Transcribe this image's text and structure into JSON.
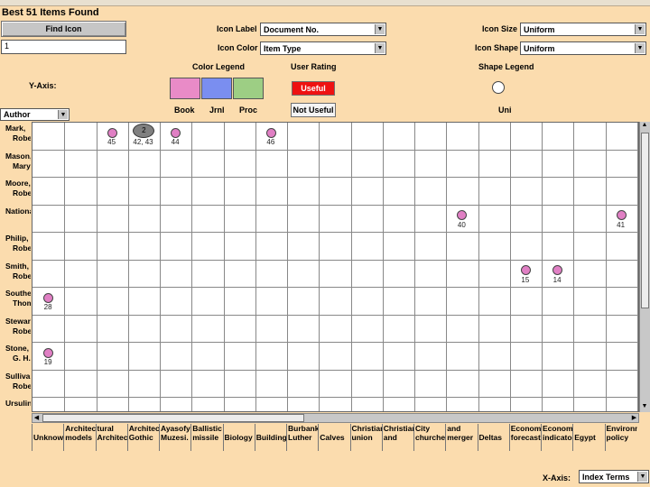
{
  "title": "Best 51 Items Found",
  "find_icon": {
    "label": "Find Icon",
    "input_value": "1"
  },
  "icon_label": {
    "label": "Icon Label",
    "value": "Document No."
  },
  "icon_color": {
    "label": "Icon Color",
    "value": "Item Type"
  },
  "icon_size": {
    "label": "Icon Size",
    "value": "Uniform"
  },
  "icon_shape": {
    "label": "Icon Shape",
    "value": "Uniform"
  },
  "color_legend": {
    "title": "Color Legend",
    "items": [
      {
        "label": "Book",
        "color": "#e98bc7"
      },
      {
        "label": "Jrnl",
        "color": "#7a8ef0"
      },
      {
        "label": "Proc",
        "color": "#9dce84"
      }
    ]
  },
  "user_rating": {
    "title": "User Rating",
    "useful": "Useful",
    "not_useful": "Not Useful"
  },
  "shape_legend": {
    "title": "Shape Legend",
    "item": "Uni"
  },
  "y_axis": {
    "label": "Y-Axis:",
    "value": "Author"
  },
  "x_axis": {
    "label": "X-Axis:",
    "value": "Index Terms"
  },
  "rows": [
    [
      "Mark,",
      "Robe"
    ],
    [
      "Mason,",
      "Mary"
    ],
    [
      "Moore,",
      "Robe"
    ],
    [
      "Nationa",
      ""
    ],
    [
      "Philip,",
      "Robe"
    ],
    [
      "Smith,",
      "Robe"
    ],
    [
      "Southe",
      "Thom"
    ],
    [
      "Stewar",
      "Robe"
    ],
    [
      "Stone,",
      "G. H."
    ],
    [
      "Sullivan",
      "Robe"
    ],
    [
      "Ursulin",
      ""
    ]
  ],
  "columns": [
    [
      "Unknown",
      ""
    ],
    [
      "Architectural",
      "models"
    ],
    [
      "tural",
      "Architecture"
    ],
    [
      "Architecture,",
      "Gothic"
    ],
    [
      "Ayasofya",
      "Muzesi."
    ],
    [
      "Ballistic",
      "missile"
    ],
    [
      "Biology",
      ""
    ],
    [
      "Building",
      ""
    ],
    [
      "Burbank,",
      "Luther"
    ],
    [
      "Calves",
      ""
    ],
    [
      "Christian",
      "union"
    ],
    [
      "Christianity",
      "and"
    ],
    [
      "City",
      "churches"
    ],
    [
      "and",
      "merger"
    ],
    [
      "Deltas",
      ""
    ],
    [
      "Economic",
      "forecasting"
    ],
    [
      "Economic",
      "indicators"
    ],
    [
      "Egypt",
      ""
    ],
    [
      "Environm",
      "policy"
    ]
  ],
  "points": [
    {
      "row": 0,
      "col": 2,
      "label": "45"
    },
    {
      "row": 0,
      "col": 4,
      "label": "44"
    },
    {
      "row": 0,
      "col": 7,
      "label": "46"
    },
    {
      "row": 3,
      "col": 13,
      "label": "40"
    },
    {
      "row": 3,
      "col": 18,
      "label": "41"
    },
    {
      "row": 5,
      "col": 15,
      "label": "15"
    },
    {
      "row": 5,
      "col": 16,
      "label": "14"
    },
    {
      "row": 6,
      "col": 0,
      "label": "28"
    },
    {
      "row": 8,
      "col": 0,
      "label": "19"
    }
  ],
  "cluster": {
    "row": 0,
    "col": 3,
    "count": "2",
    "label": "42, 43"
  }
}
